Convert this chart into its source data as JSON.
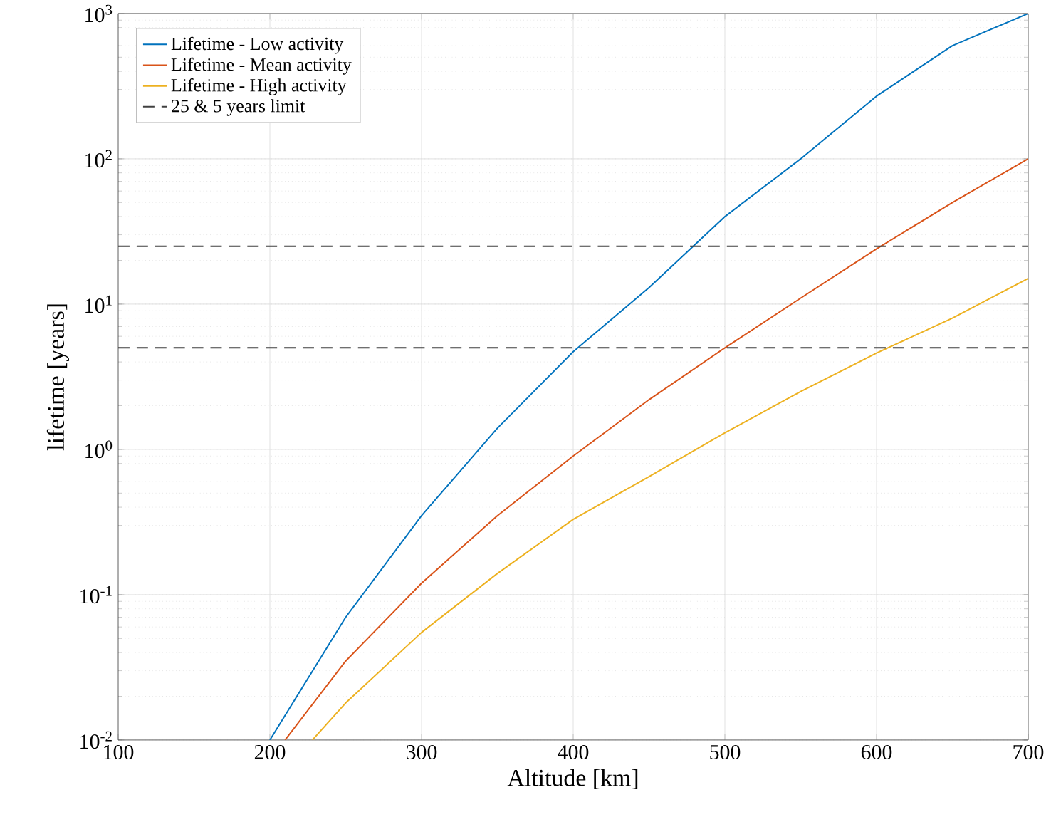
{
  "chart_data": {
    "type": "line",
    "xlabel": "Altitude [km]",
    "ylabel": "lifetime [years]",
    "log": "y",
    "grid": true,
    "legend": "top left",
    "xlim": [
      100,
      700
    ],
    "xticks": [
      100,
      200,
      300,
      400,
      500,
      600,
      700
    ],
    "ylim": [
      0.01,
      1000
    ],
    "yticks": [
      {
        "value": 0.01,
        "label": "10$^{-2}$"
      },
      {
        "value": 0.1,
        "label": "10$^{-1}$"
      },
      {
        "value": 1,
        "label": "10$^{0}$"
      },
      {
        "value": 10,
        "label": "10$^{1}$"
      },
      {
        "value": 100,
        "label": "10$^{2}$"
      },
      {
        "value": 1000,
        "label": "10$^{3}$"
      }
    ],
    "series": [
      {
        "name": "Lifetime - Low activity",
        "color": "#0072bd",
        "x": [
          200,
          250,
          300,
          350,
          400,
          450,
          500,
          550,
          600,
          650,
          700
        ],
        "values": [
          0.01,
          0.07,
          0.35,
          1.4,
          4.7,
          13,
          40,
          100,
          270,
          600,
          1000
        ]
      },
      {
        "name": "Lifetime - Mean activity",
        "color": "#d95319",
        "x": [
          210,
          250,
          300,
          350,
          400,
          450,
          500,
          550,
          600,
          650,
          700
        ],
        "values": [
          0.01,
          0.035,
          0.12,
          0.35,
          0.9,
          2.2,
          5,
          11,
          24,
          50,
          100
        ]
      },
      {
        "name": "Lifetime - High activity",
        "color": "#edb120",
        "x": [
          228,
          250,
          300,
          350,
          400,
          450,
          500,
          550,
          600,
          650,
          700
        ],
        "values": [
          0.01,
          0.018,
          0.055,
          0.14,
          0.33,
          0.65,
          1.3,
          2.5,
          4.6,
          8,
          15
        ]
      }
    ],
    "ref_lines": [
      {
        "axis": "y",
        "value": 25,
        "label": "25 & 5 years limit",
        "color": "#404040",
        "line_style": "dashed"
      },
      {
        "axis": "y",
        "value": 5,
        "color": "#404040",
        "line_style": "dashed"
      }
    ]
  }
}
